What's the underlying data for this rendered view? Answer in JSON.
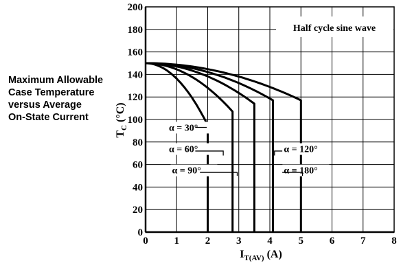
{
  "side_title": [
    "Maximum Allowable",
    "Case Temperature",
    "versus Average",
    "On-State Current"
  ],
  "chart_data": {
    "type": "line",
    "title": "Half cycle sine wave",
    "xlabel": {
      "main": "I",
      "sub": "T(AV)",
      "unit": " (A)"
    },
    "ylabel": {
      "main": "T",
      "sub": "C",
      "unit": " (°C)"
    },
    "xlim": [
      0,
      8
    ],
    "ylim": [
      0,
      200
    ],
    "x_ticks": [
      0,
      1,
      2,
      3,
      4,
      5,
      6,
      7,
      8
    ],
    "y_ticks": [
      0,
      20,
      40,
      60,
      80,
      100,
      120,
      140,
      160,
      180,
      200
    ],
    "grid": true,
    "series": [
      {
        "name": "α = 30°",
        "t0": 150,
        "x_end": 2.0,
        "y_end": 95
      },
      {
        "name": "α = 60°",
        "t0": 150,
        "x_end": 2.8,
        "y_end": 107
      },
      {
        "name": "α = 90°",
        "t0": 150,
        "x_end": 3.5,
        "y_end": 114
      },
      {
        "name": "α = 120°",
        "t0": 150,
        "x_end": 4.1,
        "y_end": 117
      },
      {
        "name": "α = 180°",
        "t0": 150,
        "x_end": 5.0,
        "y_end": 117
      }
    ],
    "annotations": [
      "α = 30°",
      "α = 60°",
      "α = 90°",
      "α = 120°",
      "α = 180°"
    ]
  }
}
